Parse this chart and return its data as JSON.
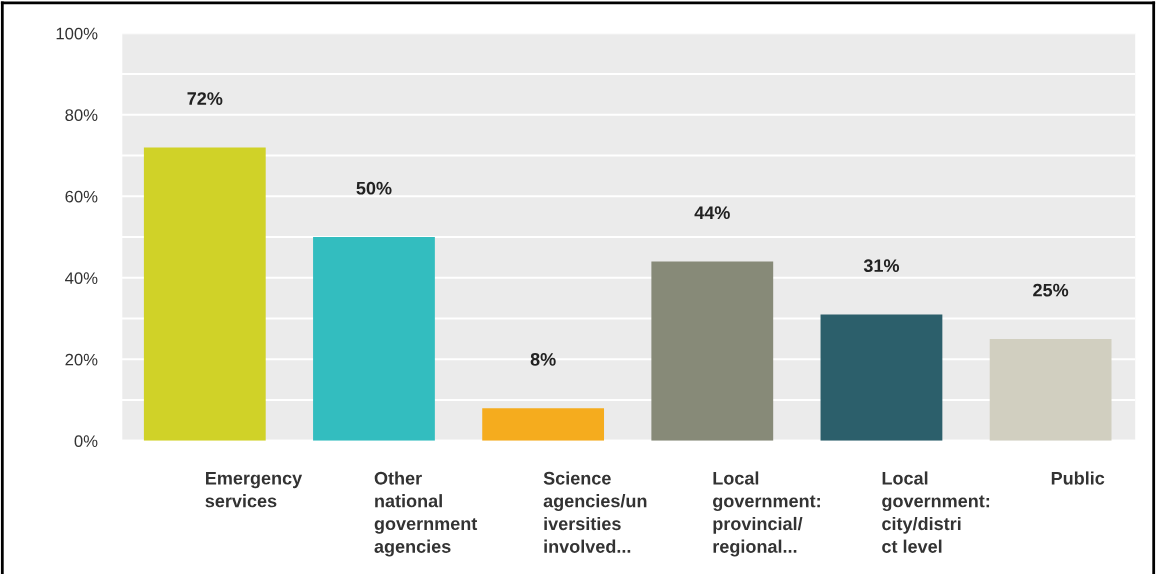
{
  "chart_data": {
    "type": "bar",
    "categories": [
      "Emergency\nservices",
      "Other\nnational\ngovernment\nagencies",
      "Science\nagencies/un\niversities\ninvolved...",
      "Local\ngovernment:\nprovincial/\nregional...",
      "Local\ngovernment:\ncity/distri\nct level",
      "Public"
    ],
    "values": [
      72,
      50,
      8,
      44,
      31,
      25
    ],
    "colors": [
      "#d0d228",
      "#33bdbf",
      "#f5ac1e",
      "#878a78",
      "#2c5f6b",
      "#d1cfc0"
    ],
    "value_labels": [
      "72%",
      "50%",
      "8%",
      "44%",
      "31%",
      "25%"
    ],
    "ylim": [
      0,
      100
    ],
    "yticks": [
      {
        "value": 0,
        "label": "0%"
      },
      {
        "value": 10,
        "label": null
      },
      {
        "value": 20,
        "label": "20%"
      },
      {
        "value": 30,
        "label": null
      },
      {
        "value": 40,
        "label": "40%"
      },
      {
        "value": 50,
        "label": null
      },
      {
        "value": 60,
        "label": "60%"
      },
      {
        "value": 70,
        "label": null
      },
      {
        "value": 80,
        "label": "80%"
      },
      {
        "value": 90,
        "label": null
      },
      {
        "value": 100,
        "label": "100%"
      }
    ],
    "grid": "y"
  }
}
